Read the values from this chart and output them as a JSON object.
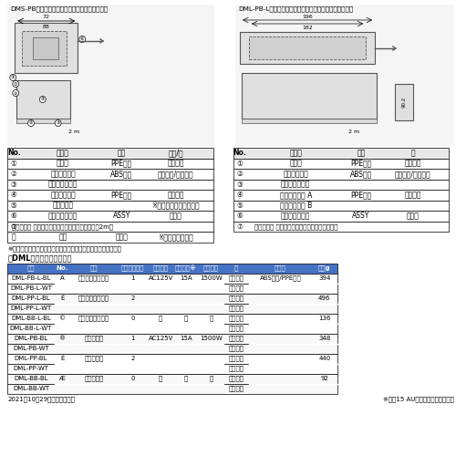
{
  "bg_color": "#ffffff",
  "title_left": "DMS-PB：正方形タイプ、電源＋空き（上図ⓖ）",
  "title_right": "DML-PB-L：横長タイプ、電源＋空き（鍵付）（上図Ａ）",
  "left_parts_table": {
    "headers": [
      "No.",
      "部品名",
      "材料",
      "仕上/色"
    ],
    "rows": [
      [
        "①",
        "ケース",
        "PPE樹脂",
        "ブラック"
      ],
      [
        "②",
        "ケースカバー",
        "ABS樹脂",
        "ホワイト/ブラック"
      ],
      [
        "③",
        "フラップカバー",
        "",
        ""
      ],
      [
        "④",
        "コードカバー",
        "PPE樹脂",
        "ブラック"
      ],
      [
        "⑤",
        "カムロック",
        "",
        "※ニッケルめっき、同墨"
      ],
      [
        "⑥",
        "埋込コンセント",
        "ASSY",
        "グレー"
      ],
      [
        "⑦",
        "差込プラグ ビニルキャップタイヤ配円形コード（2m）",
        "",
        ""
      ],
      [
        "－",
        "キー",
        "銅合金",
        "※ニッケルめっき"
      ]
    ]
  },
  "right_parts_table": {
    "headers": [
      "No.",
      "部品名",
      "材料",
      "色"
    ],
    "rows": [
      [
        "①",
        "ベース",
        "PPE樹脂",
        "ブラック"
      ],
      [
        "②",
        "ベースカバー",
        "ABS樹脂",
        "ホワイト/ブラック"
      ],
      [
        "③",
        "フラップカバー",
        "",
        ""
      ],
      [
        "④",
        "コードカバー A",
        "PPE樹脂",
        "ブラック"
      ],
      [
        "⑤",
        "コードカバー B",
        "",
        ""
      ],
      [
        "⑥",
        "埋込コンセント",
        "ASSY",
        "グレー"
      ],
      [
        "⑦",
        "差込プラグ ビニルキャップタイヤ長円形コード",
        "",
        ""
      ]
    ]
  },
  "note1": "※印の仕上は在庫がなくなり次第、クロムめっきに変わります。",
  "section_title": "［DML型（横長タイプ）］",
  "main_table_header_bg": "#4472c4",
  "main_table_headers": [
    "品番",
    "No.",
    "仕様",
    "コンセント数",
    "定格電圧",
    "定格電流※",
    "定格容量",
    "色",
    "主材料",
    "質量g"
  ],
  "main_table_rows": [
    [
      "DML-PB-L-BL",
      "Ä",
      "鍵付、電源＋空き",
      "1",
      "AC125V",
      "15A",
      "1500W",
      "ブラック",
      "ABS樹脂/PPE樹脂",
      "394"
    ],
    [
      "DML-PB-L-WT",
      "",
      "",
      "",
      "",
      "",
      "",
      "ホワイト",
      "",
      ""
    ],
    [
      "DML-PP-L-BL",
      "É",
      "鍵付、電源＋電源",
      "2",
      "",
      "",
      "",
      "ブラック",
      "",
      "496"
    ],
    [
      "DML-PP-L-WT",
      "",
      "",
      "",
      "",
      "",
      "",
      "ホワイト",
      "",
      ""
    ],
    [
      "DML-BB-L-BL",
      "©",
      "鍵付、空き＋空き",
      "0",
      "－",
      "－",
      "－",
      "ブラック",
      "",
      "136"
    ],
    [
      "DML-BB-L-WT",
      "",
      "",
      "",
      "",
      "",
      "",
      "ホワイト",
      "",
      ""
    ],
    [
      "DML-PB-BL",
      "®",
      "電源＋空き",
      "1",
      "AC125V",
      "15A",
      "1500W",
      "ブラック",
      "",
      "348"
    ],
    [
      "DML-PB-WT",
      "",
      "",
      "",
      "",
      "",
      "",
      "ホワイト",
      "",
      ""
    ],
    [
      "DML-PP-BL",
      "È",
      "電源＋電源",
      "2",
      "",
      "",
      "",
      "ブラック",
      "",
      "440"
    ],
    [
      "DML-PP-WT",
      "",
      "",
      "",
      "",
      "",
      "",
      "ホワイト",
      "",
      ""
    ],
    [
      "DML-BB-BL",
      "Æ",
      "空き＋空き",
      "0",
      "－",
      "－",
      "－",
      "ブラック",
      "",
      "92"
    ],
    [
      "DML-BB-WT",
      "",
      "",
      "",
      "",
      "",
      "",
      "ホワイト",
      "",
      ""
    ]
  ],
  "footer_left": "2021年10月29日の情報です。",
  "footer_right": "※合計15 AU内でご使用ください。"
}
